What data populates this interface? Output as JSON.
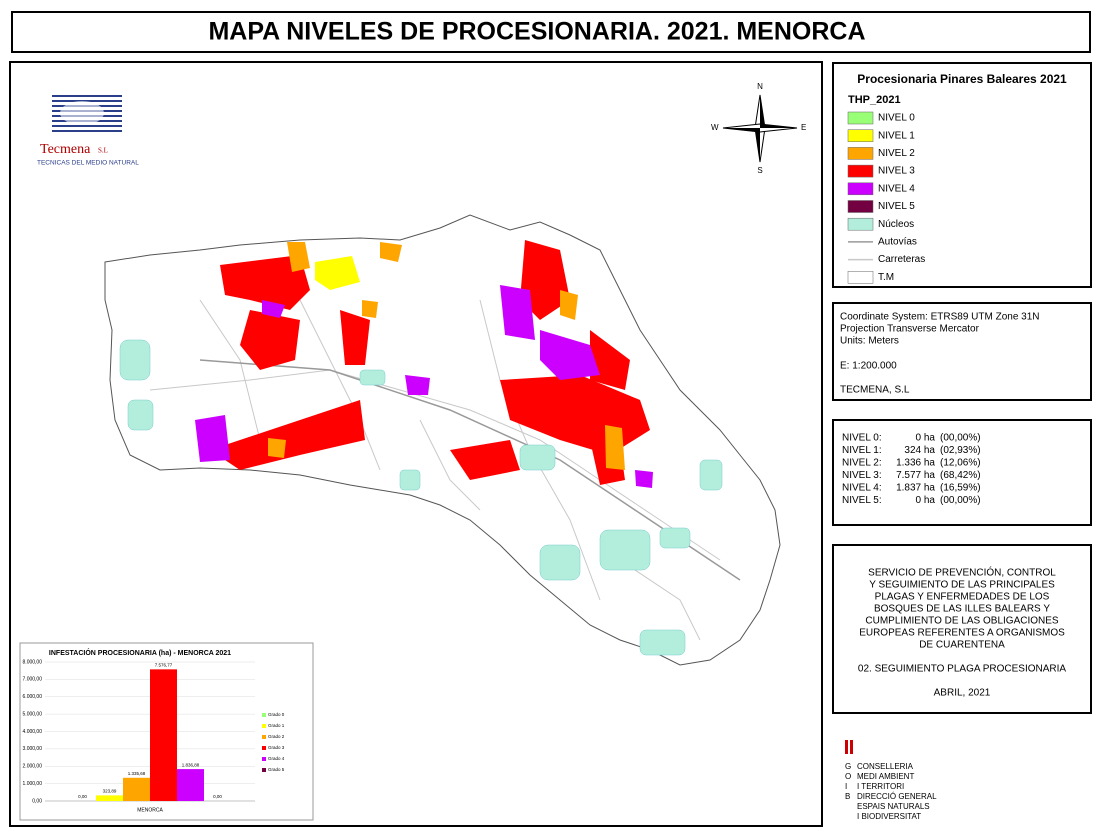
{
  "header": {
    "title": "MAPA NIVELES DE PROCESIONARIA. 2021. MENORCA"
  },
  "logo": {
    "name": "Tecmena",
    "suffix": "S.L",
    "subtitle": "TECNICAS DEL MEDIO NATURAL"
  },
  "compass": {
    "n": "N",
    "s": "S",
    "e": "E",
    "w": "W"
  },
  "legend": {
    "title": "Procesionaria Pinares Baleares 2021",
    "layer": "THP_2021",
    "items": [
      {
        "label": "NIVEL 0",
        "color": "#99ff77",
        "kind": "fill"
      },
      {
        "label": "NIVEL 1",
        "color": "#ffff00",
        "kind": "fill"
      },
      {
        "label": "NIVEL 2",
        "color": "#ffa500",
        "kind": "fill"
      },
      {
        "label": "NIVEL 3",
        "color": "#ff0000",
        "kind": "fill"
      },
      {
        "label": "NIVEL 4",
        "color": "#cc00ff",
        "kind": "fill"
      },
      {
        "label": "NIVEL 5",
        "color": "#730040",
        "kind": "fill"
      },
      {
        "label": "Núcleos",
        "color": "#b3eedd",
        "kind": "fill"
      },
      {
        "label": "Autovías",
        "color": "#999999",
        "kind": "line"
      },
      {
        "label": "Carreteras",
        "color": "#c8c8c8",
        "kind": "line"
      },
      {
        "label": "T.M",
        "color": "#ffffff",
        "kind": "fill"
      }
    ]
  },
  "projection": {
    "lines": [
      "Coordinate System: ETRS89 UTM Zone 31N",
      "Projection Transverse Mercator",
      "Units: Meters",
      "E: 1:200.000",
      "TECMENA, S.L"
    ]
  },
  "stats": {
    "rows": [
      [
        "NIVEL 0:",
        "0 ha",
        "(00,00%)"
      ],
      [
        "NIVEL 1:",
        "324 ha",
        "(02,93%)"
      ],
      [
        "NIVEL 2:",
        "1.336 ha",
        "(12,06%)"
      ],
      [
        "NIVEL 3:",
        "7.577 ha",
        "(68,42%)"
      ],
      [
        "NIVEL 4:",
        "1.837 ha",
        "(16,59%)"
      ],
      [
        "NIVEL 5:",
        "0 ha",
        "(00,00%)"
      ]
    ]
  },
  "service": {
    "lines": [
      "SERVICIO DE PREVENCIÓN, CONTROL",
      "Y SEGUIMIENTO DE LAS PRINCIPALES",
      "PLAGAS Y ENFERMEDADES DE LOS",
      "BOSQUES DE LAS ILLES BALEARS Y",
      "CUMPLIMIENTO DE LAS OBLIGACIONES",
      "EUROPEAS REFERENTES A ORGANISMOS",
      "DE CUARENTENA"
    ],
    "subtitle": "02. SEGUIMIENTO PLAGA PROCESIONARIA",
    "date": "ABRIL, 2021"
  },
  "govern": {
    "letters": [
      "G",
      "O",
      "I",
      "B"
    ],
    "lines": [
      "CONSELLERIA",
      "MEDI AMBIENT",
      "I TERRITORI",
      "DIRECCIÓ GENERAL",
      "ESPAIS NATURALS",
      "I BIODIVERSITAT"
    ]
  },
  "chart_data": {
    "type": "bar",
    "title": "INFESTACIÓN PROCESIONARIA (ha) - MENORCA 2021",
    "categories": [
      "MENORCA"
    ],
    "series": [
      {
        "name": "Grado 0",
        "color": "#99ff77",
        "values": [
          0
        ],
        "value_labels": [
          "0,00"
        ]
      },
      {
        "name": "Grado 1",
        "color": "#ffff00",
        "values": [
          323.89
        ],
        "value_labels": [
          "323,89"
        ]
      },
      {
        "name": "Grado 2",
        "color": "#ffa500",
        "values": [
          1335.68
        ],
        "value_labels": [
          "1.335,68"
        ]
      },
      {
        "name": "Grado 3",
        "color": "#ff0000",
        "values": [
          7576.77
        ],
        "value_labels": [
          "7.576,77"
        ]
      },
      {
        "name": "Grado 4",
        "color": "#cc00ff",
        "values": [
          1836.88
        ],
        "value_labels": [
          "1.836,88"
        ]
      },
      {
        "name": "Grado 5",
        "color": "#730040",
        "values": [
          0
        ],
        "value_labels": [
          "0,00"
        ]
      }
    ],
    "ylim": [
      0,
      8000
    ],
    "yticks": [
      {
        "value": 0,
        "label": "0,00"
      },
      {
        "value": 1000,
        "label": "1.000,00"
      },
      {
        "value": 2000,
        "label": "2.000,00"
      },
      {
        "value": 3000,
        "label": "3.000,00"
      },
      {
        "value": 4000,
        "label": "4.000,00"
      },
      {
        "value": 5000,
        "label": "5.000,00"
      },
      {
        "value": 6000,
        "label": "6.000,00"
      },
      {
        "value": 7000,
        "label": "7.000,00"
      },
      {
        "value": 8000,
        "label": "8.000,00"
      }
    ],
    "grid": true
  }
}
